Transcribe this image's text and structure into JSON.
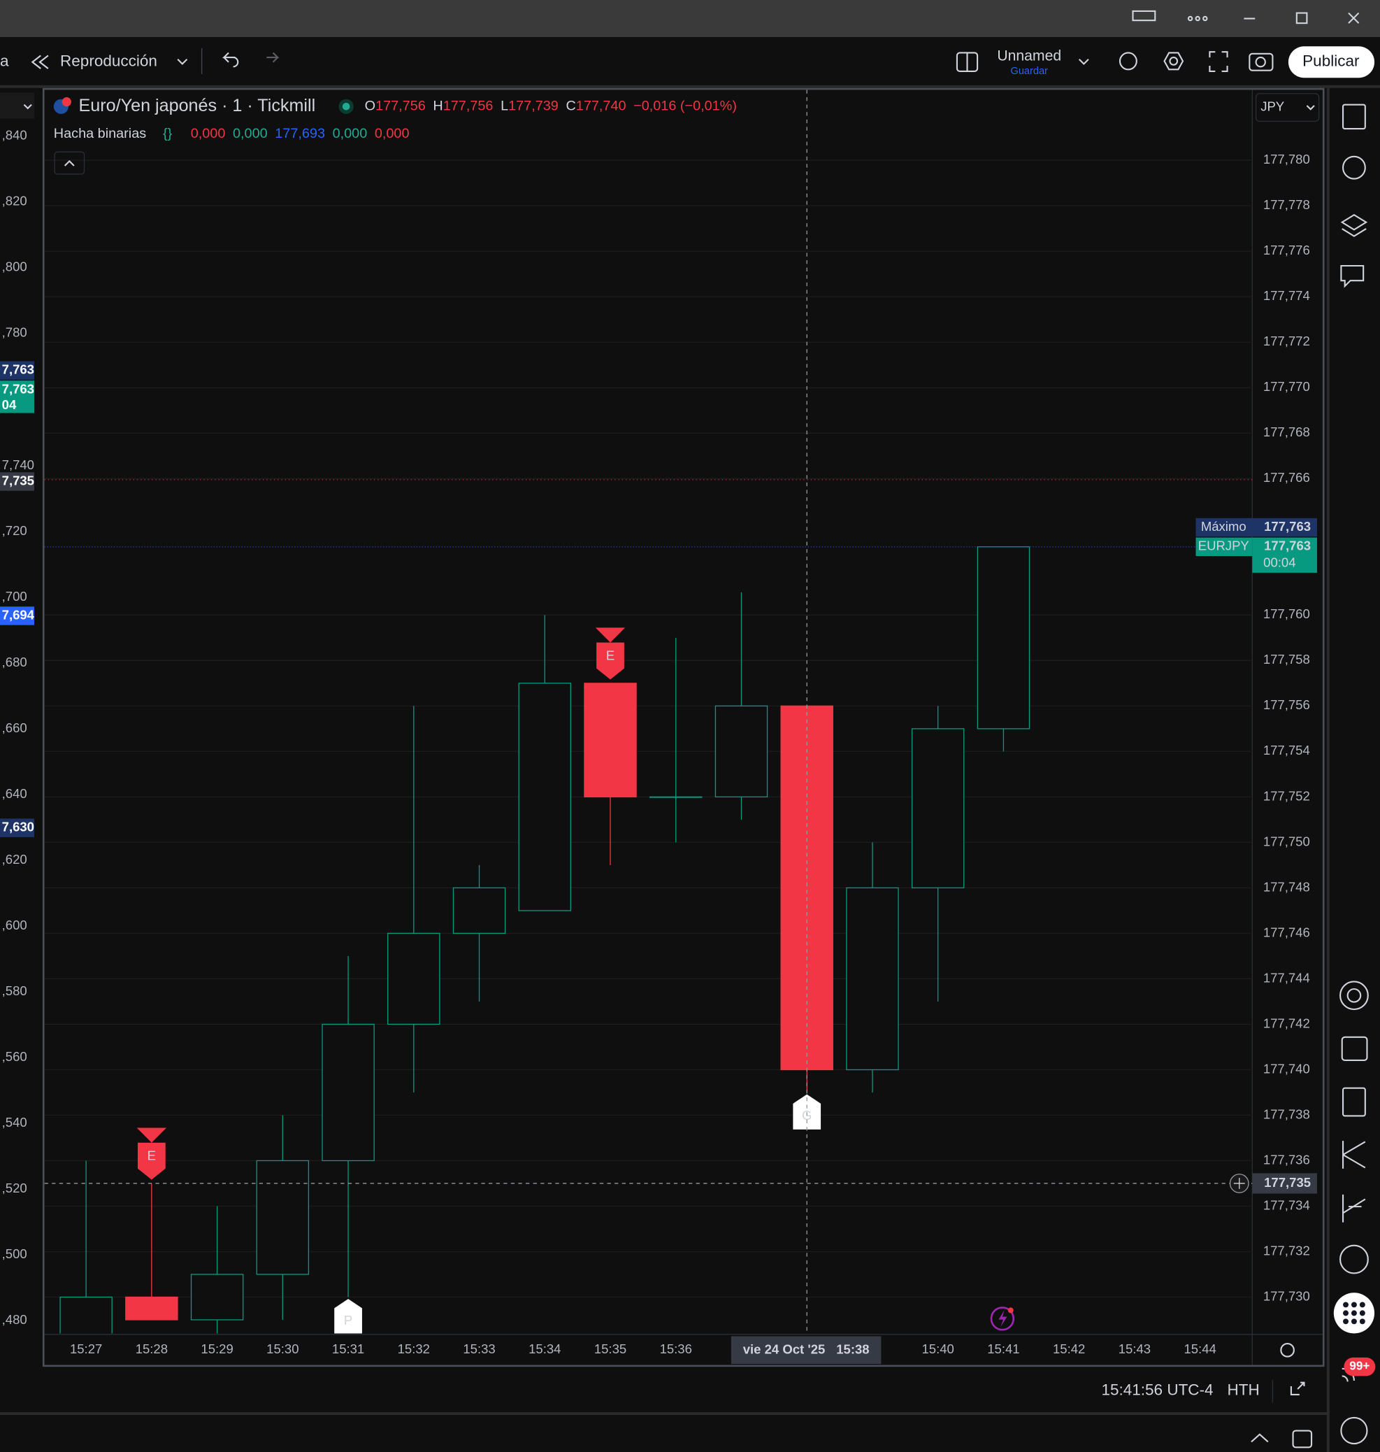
{
  "chart_data": {
    "type": "candlestick",
    "title": "Euro/Yen japonés · 1 · Tickmill",
    "categories": [
      "15:27",
      "15:28",
      "15:29",
      "15:30",
      "15:31",
      "15:32",
      "15:33",
      "15:34",
      "15:35",
      "15:36",
      null,
      "15:38",
      null,
      "15:40",
      "15:41",
      "15:42",
      "15:43",
      "15:44"
    ],
    "open": [
      177.728,
      177.73,
      177.729,
      177.731,
      177.736,
      177.742,
      177.746,
      177.747,
      177.757,
      177.752,
      177.752,
      177.756,
      177.74,
      177.748,
      177.755,
      null,
      null,
      null
    ],
    "high": [
      177.736,
      177.735,
      177.734,
      177.738,
      177.745,
      177.756,
      177.749,
      177.76,
      177.757,
      177.759,
      177.761,
      177.756,
      177.75,
      177.756,
      177.763,
      null,
      null,
      null
    ],
    "low": [
      177.728,
      177.729,
      177.728,
      177.729,
      177.73,
      177.739,
      177.743,
      177.747,
      177.749,
      177.75,
      177.751,
      177.739,
      177.739,
      177.743,
      177.754,
      null,
      null,
      null
    ],
    "close": [
      177.73,
      177.729,
      177.731,
      177.736,
      177.742,
      177.746,
      177.748,
      177.757,
      177.752,
      177.752,
      177.756,
      177.74,
      177.748,
      177.755,
      177.763,
      null,
      null,
      null
    ],
    "up_color": "#089981",
    "down_color": "#f23645",
    "ylim": [
      177.7284,
      177.7831
    ],
    "yticks": [
      {
        "value": 177.73,
        "label": "177,730"
      },
      {
        "value": 177.732,
        "label": "177,732"
      },
      {
        "value": 177.734,
        "label": "177,734"
      },
      {
        "value": 177.736,
        "label": "177,736"
      },
      {
        "value": 177.738,
        "label": "177,738"
      },
      {
        "value": 177.74,
        "label": "177,740"
      },
      {
        "value": 177.742,
        "label": "177,742"
      },
      {
        "value": 177.744,
        "label": "177,744"
      },
      {
        "value": 177.746,
        "label": "177,746"
      },
      {
        "value": 177.748,
        "label": "177,748"
      },
      {
        "value": 177.75,
        "label": "177,750"
      },
      {
        "value": 177.752,
        "label": "177,752"
      },
      {
        "value": 177.754,
        "label": "177,754"
      },
      {
        "value": 177.756,
        "label": "177,756"
      },
      {
        "value": 177.758,
        "label": "177,758"
      },
      {
        "value": 177.76,
        "label": "177,760"
      },
      {
        "value": 177.766,
        "label": "177,766"
      },
      {
        "value": 177.768,
        "label": "177,768"
      },
      {
        "value": 177.77,
        "label": "177,770"
      },
      {
        "value": 177.772,
        "label": "177,772"
      },
      {
        "value": 177.774,
        "label": "177,774"
      },
      {
        "value": 177.776,
        "label": "177,776"
      },
      {
        "value": 177.778,
        "label": "177,778"
      },
      {
        "value": 177.78,
        "label": "177,780"
      }
    ],
    "grid": true,
    "markers": [
      {
        "at": "15:28",
        "text": "E",
        "side": "above",
        "color": "#f23645",
        "text_color": "#ffffff"
      },
      {
        "at": "15:35",
        "text": "E",
        "side": "above",
        "color": "#f23645",
        "text_color": "#ffffff"
      },
      {
        "at": "15:31",
        "text": "P",
        "side": "below",
        "color": "#ffffff",
        "text_color": "#f23645"
      },
      {
        "at": "15:38",
        "text": "G",
        "side": "below",
        "color": "#ffffff",
        "text_color": "#089981"
      }
    ],
    "price_lines": [
      {
        "name": "Máximo",
        "value": 177.763,
        "label": "177,763",
        "color": "#1e3466"
      },
      {
        "name": "EURJPY",
        "value": 177.763,
        "label": "177,763",
        "countdown": "00:04",
        "color": "#089981"
      }
    ],
    "crosshair": {
      "value": 177.735,
      "label": "177,735",
      "date": "vie 24 Oct '25",
      "at": "15:38"
    }
  },
  "ui": {
    "toolbar": {
      "partial": "a",
      "replay": "Reproducción",
      "layout_name": "Unnamed",
      "save": "Guardar",
      "publish": "Publicar"
    },
    "currency": "JPY",
    "legend": {
      "ohlc": [
        {
          "key": "O",
          "value": "177,756"
        },
        {
          "key": "H",
          "value": "177,756"
        },
        {
          "key": "L",
          "value": "177,739"
        },
        {
          "key": "C",
          "value": "177,740"
        }
      ],
      "change": "−0,016 (−0,01%)",
      "value_color": "#f23645"
    },
    "indicator": {
      "name": "Hacha binarias",
      "icon": "{}",
      "values": [
        {
          "text": "0,000",
          "color": "#f23645"
        },
        {
          "text": "0,000",
          "color": "#22ab94"
        },
        {
          "text": "177,693",
          "color": "#2962ff"
        },
        {
          "text": "0,000",
          "color": "#22ab94"
        },
        {
          "text": "0,000",
          "color": "#f23645"
        }
      ]
    },
    "left_axis": [
      {
        "label": ",840"
      },
      {
        "label": ",820"
      },
      {
        "label": ",800"
      },
      {
        "label": ",780"
      },
      {
        "label": "7,763",
        "bg": "#1e3466"
      },
      {
        "label": "7,763",
        "bg": "#089981"
      },
      {
        "label": "04",
        "bg": "#089981"
      },
      {
        "label": "7,740"
      },
      {
        "label": "7,735",
        "bg": "#363a45"
      },
      {
        "label": ",720"
      },
      {
        "label": ",700"
      },
      {
        "label": "7,694",
        "bg": "#2962ff"
      },
      {
        "label": ",680"
      },
      {
        "label": ",660"
      },
      {
        "label": ",640"
      },
      {
        "label": "7,630",
        "bg": "#1e3466"
      },
      {
        "label": ",620"
      },
      {
        "label": ",600"
      },
      {
        "label": ",580"
      },
      {
        "label": ",560"
      },
      {
        "label": ",540"
      },
      {
        "label": ",520"
      },
      {
        "label": ",500"
      },
      {
        "label": ",480"
      }
    ],
    "status": {
      "clock": "15:41:56 UTC-4",
      "session": "HTH"
    },
    "notifications": "99+"
  }
}
